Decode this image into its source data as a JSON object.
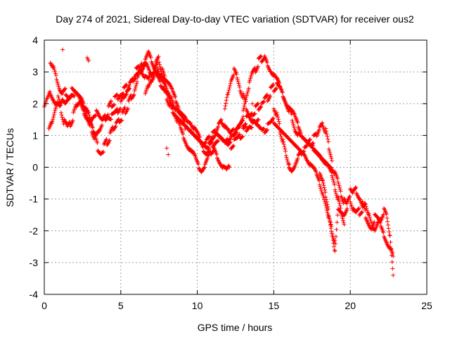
{
  "chart_data": {
    "type": "scatter",
    "title": "Day 274 of 2021, Sidereal Day-to-day VTEC variation (SDTVAR) for receiver ous2",
    "xlabel": "GPS time / hours",
    "ylabel": "SDTVAR / TECUs",
    "xlim": [
      0,
      25
    ],
    "ylim": [
      -4,
      4
    ],
    "xticks": [
      0,
      5,
      10,
      15,
      20,
      25
    ],
    "yticks": [
      -4,
      -3,
      -2,
      -1,
      0,
      1,
      2,
      3,
      4
    ],
    "grid": true,
    "marker": "+",
    "color": "#ff0000",
    "series": [
      {
        "name": "SDTVAR",
        "tracks": [
          {
            "x": [
              0.0,
              0.2,
              0.4,
              0.6,
              0.8,
              1.0,
              1.2,
              1.4,
              1.6,
              1.8,
              2.0,
              2.2,
              2.4,
              2.6,
              2.8,
              3.0,
              3.2,
              3.4,
              3.6,
              3.8,
              4.0,
              4.2,
              4.4,
              4.6,
              4.8,
              5.0,
              5.2,
              5.4,
              5.6,
              5.8,
              6.0,
              6.2,
              6.4,
              6.6,
              6.8,
              7.0,
              7.2,
              7.4,
              7.6,
              7.8,
              8.0,
              8.2,
              8.4,
              8.6,
              8.8,
              9.0,
              9.2,
              9.4,
              9.6,
              9.8,
              10.0,
              10.2,
              10.4,
              10.6,
              10.8,
              11.0,
              11.2,
              11.4,
              11.6,
              11.8,
              12.0,
              12.2,
              12.4,
              12.6,
              12.8,
              13.0,
              13.2,
              13.4,
              13.6,
              13.8,
              14.0
            ],
            "y": [
              1.8,
              2.1,
              2.4,
              2.2,
              2.0,
              1.9,
              2.1,
              2.0,
              2.2,
              2.3,
              2.3,
              2.2,
              2.1,
              1.9,
              1.7,
              1.5,
              1.6,
              1.7,
              1.5,
              1.4,
              1.5,
              1.6,
              1.6,
              1.7,
              1.8,
              2.0,
              2.2,
              2.4,
              2.6,
              2.8,
              3.0,
              3.1,
              3.0,
              2.8,
              2.7,
              2.9,
              3.1,
              2.8,
              2.6,
              2.5,
              2.4,
              2.2,
              2.0,
              1.8,
              1.6,
              1.5,
              1.3,
              1.2,
              1.1,
              1.0,
              0.9,
              0.8,
              0.7,
              0.6,
              0.6,
              0.7,
              0.8,
              0.9,
              0.8,
              0.7,
              0.6,
              0.7,
              0.8,
              0.9,
              1.0,
              1.1,
              1.2,
              1.3,
              1.3,
              1.4,
              1.5
            ]
          },
          {
            "x": [
              0.3,
              0.5,
              0.7,
              0.9,
              1.1,
              1.3,
              1.5,
              1.7,
              1.9,
              2.1,
              2.3,
              2.5,
              2.7,
              2.9,
              3.1,
              3.3,
              3.5,
              3.7,
              3.9,
              4.1,
              4.3,
              4.5,
              4.7,
              4.9,
              5.1,
              5.3,
              5.5,
              5.7,
              5.9,
              6.1,
              6.3,
              6.5,
              6.7,
              6.9,
              7.1,
              7.3,
              7.5,
              7.7,
              7.9,
              8.1,
              8.3,
              8.5,
              8.7,
              8.9,
              9.1,
              9.3,
              9.5,
              9.7,
              9.9,
              10.1,
              10.3,
              10.5,
              10.7,
              10.9,
              11.1,
              11.3,
              11.5,
              11.7,
              11.9,
              12.1
            ],
            "y": [
              1.2,
              1.5,
              1.9,
              2.2,
              1.8,
              1.4,
              1.2,
              1.4,
              1.6,
              1.9,
              2.1,
              2.0,
              1.8,
              1.6,
              1.2,
              0.9,
              0.6,
              0.5,
              0.6,
              0.8,
              1.0,
              1.2,
              1.4,
              1.5,
              1.6,
              1.8,
              2.0,
              2.2,
              2.4,
              2.7,
              3.0,
              3.2,
              3.3,
              3.1,
              3.0,
              3.2,
              3.4,
              3.0,
              2.7,
              2.4,
              2.1,
              1.8,
              1.5,
              1.2,
              1.0,
              0.8,
              0.6,
              0.4,
              0.2,
              0.0,
              -0.1,
              0.1,
              0.3,
              0.5,
              0.6,
              0.4,
              0.2,
              0.0,
              -0.1,
              0.0
            ]
          },
          {
            "x": [
              0.4,
              0.6,
              0.8,
              1.0,
              1.2,
              1.4,
              1.6,
              1.8,
              2.0,
              2.2,
              2.4,
              2.6,
              2.8,
              3.0,
              3.2,
              3.4,
              3.6,
              3.8,
              4.0,
              4.2,
              4.4,
              4.6,
              4.8,
              5.0,
              5.2,
              5.4,
              5.6,
              5.8,
              6.0,
              6.2,
              6.4,
              6.6,
              6.8,
              7.0,
              7.2,
              7.4,
              7.6,
              7.8,
              8.0,
              8.2,
              8.4,
              8.6,
              8.8,
              9.0,
              9.2,
              9.4,
              9.6,
              9.8,
              10.0,
              10.2,
              10.4,
              10.6,
              10.8,
              11.0,
              11.2,
              11.4,
              11.6,
              11.8,
              12.0,
              12.2,
              12.4,
              12.6,
              12.8,
              13.0
            ],
            "y": [
              3.4,
              3.2,
              2.8,
              2.5,
              2.3,
              2.4,
              2.3,
              2.4,
              2.3,
              2.2,
              2.0,
              1.8,
              1.6,
              1.3,
              1.1,
              1.0,
              1.2,
              1.4,
              1.6,
              1.8,
              2.0,
              2.1,
              2.2,
              2.3,
              2.4,
              2.5,
              2.6,
              2.8,
              2.9,
              3.0,
              3.2,
              3.4,
              3.6,
              3.4,
              3.2,
              3.0,
              2.8,
              2.7,
              2.6,
              2.5,
              2.3,
              2.1,
              1.9,
              1.8,
              1.7,
              1.5,
              1.4,
              1.2,
              1.0,
              0.8,
              0.6,
              0.5,
              0.7,
              0.9,
              1.1,
              1.3,
              1.5,
              1.3,
              1.1,
              0.9,
              1.0,
              1.2,
              1.4,
              1.6
            ]
          },
          {
            "x": [
              6.6,
              6.8,
              7.0,
              7.2,
              7.4,
              7.6,
              7.8,
              8.0,
              8.2,
              8.4,
              8.6,
              8.8,
              9.0,
              9.2,
              9.4,
              9.6,
              9.8,
              10.0,
              10.2,
              10.4,
              10.6,
              10.8,
              11.0,
              11.2,
              11.4,
              11.6,
              11.8,
              12.0,
              12.2,
              12.4,
              12.6,
              12.8,
              13.0,
              13.2,
              13.4,
              13.6,
              13.8,
              14.0,
              14.2,
              14.4,
              14.6,
              14.8,
              15.0,
              15.2,
              15.4,
              15.6,
              15.8,
              16.0,
              16.2,
              16.4,
              16.6,
              16.8,
              17.0,
              17.2,
              17.4,
              17.6,
              17.8,
              18.0,
              18.2,
              18.4,
              18.6,
              18.8,
              19.0,
              19.2,
              19.4,
              19.6,
              19.8
            ],
            "y": [
              2.2,
              2.5,
              2.8,
              3.0,
              3.2,
              2.9,
              2.6,
              2.2,
              1.9,
              1.7,
              1.6,
              1.5,
              1.4,
              1.3,
              1.2,
              1.1,
              1.0,
              0.9,
              0.8,
              0.7,
              0.8,
              0.9,
              1.0,
              1.1,
              1.0,
              0.9,
              0.8,
              0.9,
              1.0,
              1.1,
              1.2,
              1.3,
              1.4,
              1.5,
              1.6,
              1.7,
              1.8,
              1.9,
              2.0,
              2.1,
              2.2,
              2.4,
              2.5,
              2.6,
              2.5,
              2.3,
              2.1,
              1.8,
              1.5,
              1.2,
              1.0,
              0.9,
              0.8,
              0.7,
              0.6,
              0.6,
              0.5,
              0.4,
              0.3,
              0.2,
              0.1,
              0.0,
              -0.2,
              -0.5,
              -0.8,
              -1.1,
              -1.3
            ]
          },
          {
            "x": [
              13.0,
              13.2,
              13.4,
              13.6,
              13.8,
              14.0,
              14.2,
              14.4,
              14.6,
              14.8,
              15.0,
              15.2,
              15.4,
              15.6,
              15.8,
              16.0,
              16.2,
              16.4,
              16.6,
              16.8,
              17.0,
              17.2,
              17.4,
              17.6,
              17.8,
              18.0,
              18.2,
              18.4,
              18.6,
              18.8,
              19.0,
              19.2,
              19.4,
              19.6
            ],
            "y": [
              1.9,
              2.3,
              2.6,
              2.9,
              3.1,
              3.3,
              3.4,
              3.5,
              3.3,
              3.1,
              2.9,
              2.7,
              2.5,
              2.3,
              2.1,
              1.9,
              1.7,
              1.5,
              1.3,
              1.1,
              1.0,
              0.9,
              0.8,
              0.7,
              0.6,
              0.5,
              0.3,
              0.1,
              -0.1,
              -0.3,
              -0.6,
              -1.0,
              -1.4,
              -1.8
            ]
          },
          {
            "x": [
              11.8,
              12.0,
              12.2,
              12.4,
              12.6,
              12.8,
              13.0,
              13.2,
              13.4,
              13.6,
              13.8,
              14.0,
              14.2,
              14.4,
              14.6,
              14.8,
              15.0,
              15.2,
              15.4,
              15.6,
              15.8,
              16.0,
              16.2,
              16.4,
              16.6,
              16.8,
              17.0,
              17.2,
              17.4,
              17.6,
              17.8,
              18.0,
              18.2,
              18.4,
              18.6,
              18.8,
              19.0
            ],
            "y": [
              1.9,
              2.4,
              2.8,
              3.0,
              2.8,
              2.5,
              2.2,
              1.9,
              1.7,
              1.5,
              1.4,
              1.3,
              1.2,
              1.2,
              1.3,
              1.4,
              1.5,
              1.4,
              1.3,
              1.2,
              1.1,
              1.0,
              0.9,
              0.8,
              0.7,
              0.6,
              0.5,
              0.3,
              0.1,
              -0.1,
              -0.3,
              -0.5,
              -0.8,
              -1.2,
              -1.6,
              -2.0,
              -2.3
            ]
          },
          {
            "x": [
              15.0,
              15.2,
              15.4,
              15.6,
              15.8,
              16.0,
              16.2,
              16.4,
              16.6,
              16.8,
              17.0,
              17.2,
              17.4,
              17.6,
              17.8,
              18.0,
              18.2,
              18.4,
              18.6,
              18.8
            ],
            "y": [
              1.9,
              1.6,
              1.2,
              0.8,
              0.4,
              0.0,
              -0.1,
              0.1,
              0.3,
              0.5,
              0.6,
              0.7,
              0.8,
              0.9,
              1.0,
              1.2,
              1.4,
              1.1,
              0.6,
              0.2
            ]
          },
          {
            "x": [
              18.0,
              18.2,
              18.4,
              18.6,
              18.8,
              19.0,
              19.2,
              19.4,
              19.6,
              19.8,
              20.0,
              20.2,
              20.4,
              20.6,
              20.8,
              21.0,
              21.2,
              21.4,
              21.6,
              21.8,
              22.0,
              22.2,
              22.4,
              22.6,
              22.8
            ],
            "y": [
              -0.2,
              -0.5,
              -0.9,
              -1.4,
              -2.0,
              -2.6,
              -1.2,
              -1.3,
              -1.4,
              -1.2,
              -1.0,
              -1.3,
              -1.5,
              -1.4,
              -1.3,
              -1.1,
              -1.5,
              -1.8,
              -1.6,
              -1.7,
              -1.9,
              -2.1,
              -2.3,
              -2.5,
              -2.8
            ]
          },
          {
            "x": [
              20.0,
              20.2,
              20.4,
              20.6,
              20.8,
              21.0,
              21.2,
              21.4,
              21.6,
              21.8,
              22.0,
              22.2,
              22.4,
              22.6,
              22.8
            ],
            "y": [
              -0.6,
              -0.8,
              -0.7,
              -0.9,
              -1.2,
              -1.5,
              -1.7,
              -1.9,
              -2.0,
              -1.8,
              -1.6,
              -1.4,
              -1.6,
              -2.2,
              -3.4
            ]
          }
        ],
        "isolated_points": {
          "x": [
            1.2,
            2.8,
            2.85,
            2.9,
            8.0,
            8.1,
            9.2,
            13.6,
            16.0
          ],
          "y": [
            3.7,
            3.45,
            3.4,
            3.35,
            0.6,
            0.4,
            1.2,
            2.0,
            0.1
          ]
        }
      }
    ]
  }
}
